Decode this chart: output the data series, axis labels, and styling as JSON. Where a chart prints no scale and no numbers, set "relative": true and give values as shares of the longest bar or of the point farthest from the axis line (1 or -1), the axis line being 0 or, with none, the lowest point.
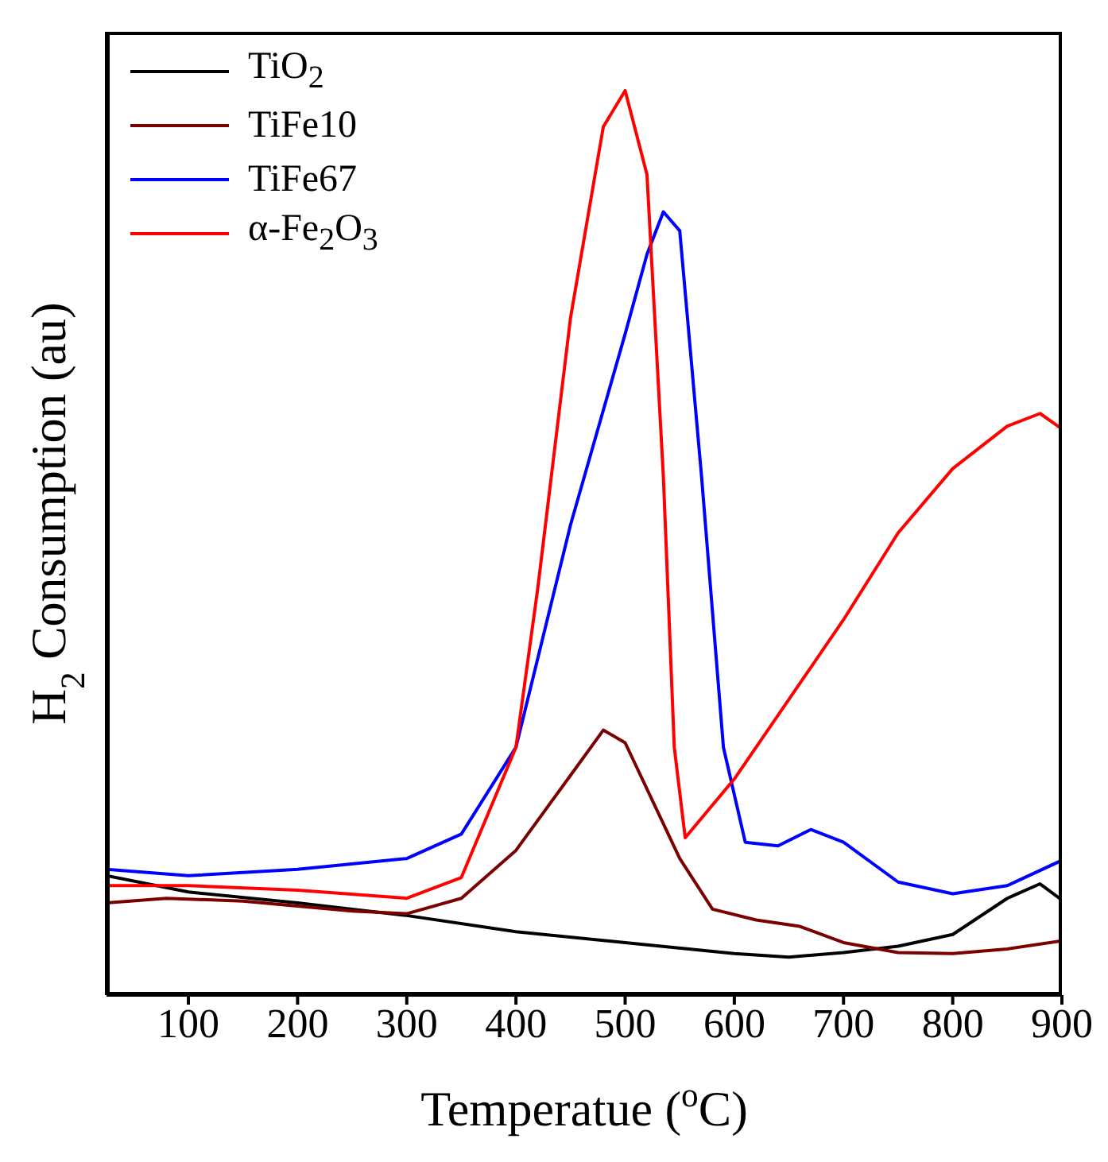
{
  "chart_data": {
    "type": "line",
    "relative": true,
    "xlabel": "Temperatue ($^{o}$C)",
    "ylabel": "H$_{2}$ Consumption (au)",
    "xlim": [
      25,
      900
    ],
    "xticks": [
      100,
      200,
      300,
      400,
      500,
      600,
      700,
      800,
      900
    ],
    "tick_labels": "x",
    "legend": "top left",
    "grid": false,
    "marker": "none",
    "line_style": "solid",
    "series": [
      {
        "name": "TiO$_{2}$",
        "color": "#000000",
        "x": [
          25,
          100,
          200,
          300,
          400,
          500,
          600,
          650,
          700,
          750,
          800,
          850,
          880,
          900
        ],
        "values": [
          0.132,
          0.114,
          0.102,
          0.088,
          0.07,
          0.058,
          0.046,
          0.042,
          0.047,
          0.054,
          0.067,
          0.107,
          0.123,
          0.105
        ]
      },
      {
        "name": "TiFe10",
        "color": "#7b0000",
        "x": [
          25,
          80,
          150,
          250,
          300,
          350,
          400,
          450,
          480,
          500,
          550,
          580,
          620,
          660,
          700,
          750,
          800,
          850,
          900
        ],
        "values": [
          0.102,
          0.107,
          0.104,
          0.093,
          0.09,
          0.107,
          0.16,
          0.243,
          0.293,
          0.279,
          0.151,
          0.095,
          0.083,
          0.076,
          0.058,
          0.047,
          0.046,
          0.051,
          0.06
        ]
      },
      {
        "name": "TiFe67",
        "color": "#0000ff",
        "x": [
          25,
          100,
          200,
          300,
          350,
          400,
          450,
          500,
          520,
          535,
          550,
          570,
          590,
          610,
          640,
          670,
          700,
          750,
          800,
          850,
          900
        ],
        "values": [
          0.139,
          0.132,
          0.139,
          0.151,
          0.178,
          0.274,
          0.52,
          0.731,
          0.819,
          0.866,
          0.845,
          0.573,
          0.274,
          0.169,
          0.165,
          0.183,
          0.169,
          0.125,
          0.112,
          0.121,
          0.149
        ]
      },
      {
        "name": "α-Fe$_{2}$O$_{3}$",
        "color": "#ff0000",
        "x": [
          25,
          100,
          200,
          300,
          350,
          400,
          420,
          450,
          480,
          500,
          520,
          535,
          545,
          555,
          600,
          650,
          700,
          750,
          800,
          850,
          880,
          900
        ],
        "values": [
          0.121,
          0.121,
          0.116,
          0.107,
          0.13,
          0.274,
          0.45,
          0.749,
          0.96,
          1.0,
          0.907,
          0.573,
          0.274,
          0.174,
          0.239,
          0.327,
          0.415,
          0.511,
          0.582,
          0.629,
          0.643,
          0.626
        ]
      }
    ]
  }
}
